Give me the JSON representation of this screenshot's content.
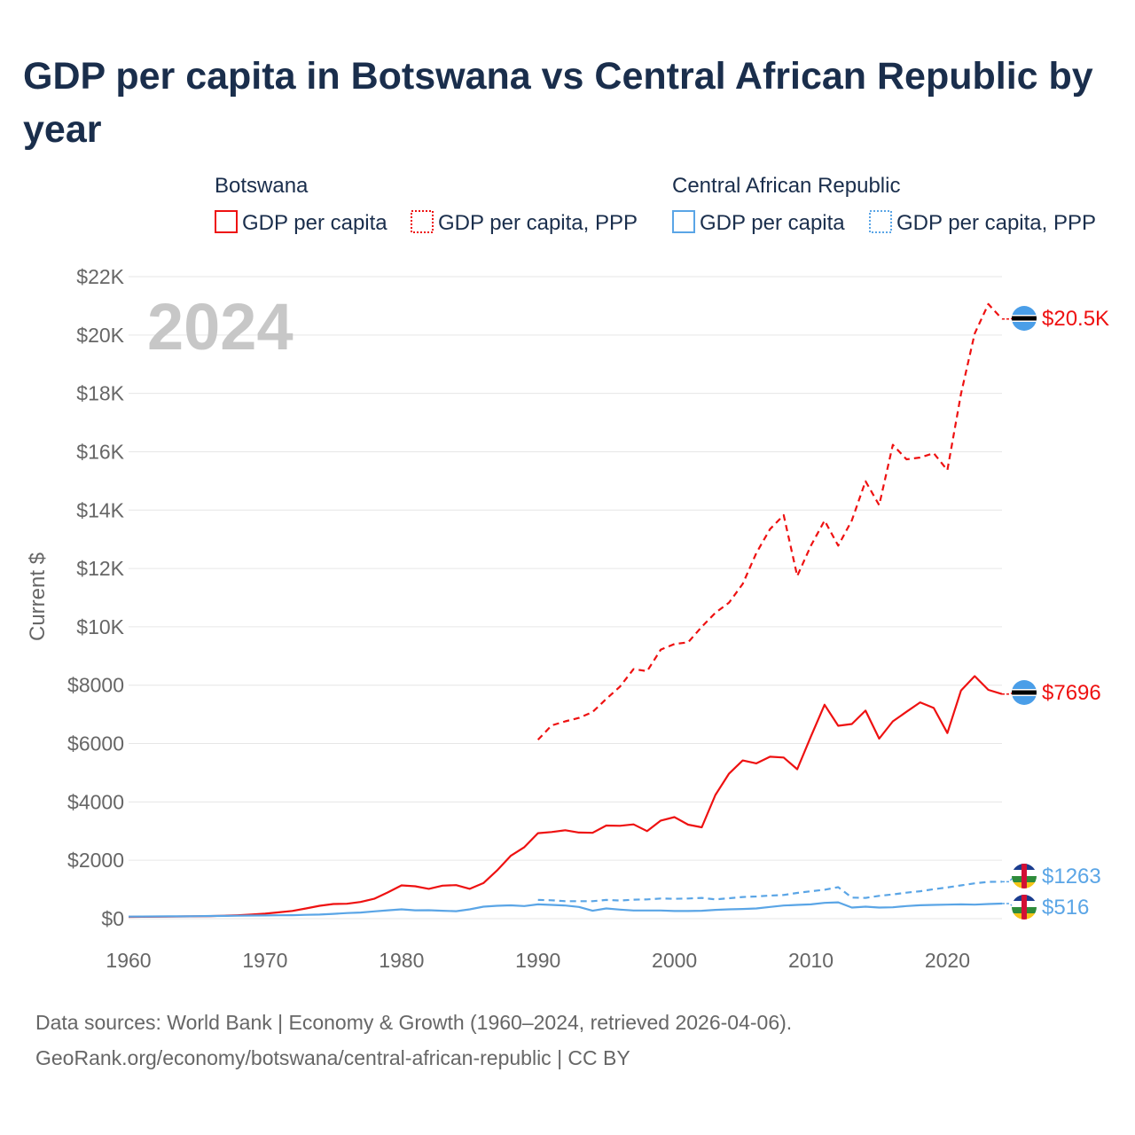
{
  "title": "GDP per capita in Botswana vs Central African Republic by year",
  "year_label": "2024",
  "legend": {
    "groups": [
      {
        "name": "Botswana",
        "items": [
          "GDP per capita",
          "GDP per capita, PPP"
        ]
      },
      {
        "name": "Central African Republic",
        "items": [
          "GDP per capita",
          "GDP per capita, PPP"
        ]
      }
    ]
  },
  "colors": {
    "botswana": "#ee1111",
    "car": "#5aa5e6",
    "grid": "#e6e6e6",
    "axis_text": "#666666"
  },
  "chart_data": {
    "type": "line",
    "title": "GDP per capita in Botswana vs Central African Republic by year",
    "xlabel": "",
    "ylabel": "Current $",
    "xlim": [
      1960,
      2024
    ],
    "ylim": [
      0,
      22000
    ],
    "x_ticks": [
      1960,
      1970,
      1980,
      1990,
      2000,
      2010,
      2020
    ],
    "x_tick_labels": [
      "1960",
      "1970",
      "1980",
      "1990",
      "2000",
      "2010",
      "2020"
    ],
    "y_ticks": [
      0,
      2000,
      4000,
      6000,
      8000,
      10000,
      12000,
      14000,
      16000,
      18000,
      20000,
      22000
    ],
    "y_tick_labels": [
      "$0",
      "$2000",
      "$4000",
      "$6000",
      "$8000",
      "$10K",
      "$12K",
      "$14K",
      "$16K",
      "$18K",
      "$20K",
      "$22K"
    ],
    "grid": true,
    "series": [
      {
        "name": "Botswana GDP per capita",
        "country": "Botswana",
        "style": "solid",
        "start_year": 1960,
        "end_label": "$7696",
        "values": [
          60,
          63,
          66,
          70,
          76,
          83,
          89,
          100,
          115,
          140,
          170,
          215,
          265,
          350,
          440,
          500,
          510,
          570,
          680,
          900,
          1140,
          1110,
          1020,
          1130,
          1150,
          1020,
          1220,
          1650,
          2150,
          2450,
          2930,
          2970,
          3030,
          2950,
          2940,
          3190,
          3180,
          3230,
          3000,
          3360,
          3480,
          3220,
          3130,
          4240,
          4970,
          5420,
          5320,
          5550,
          5520,
          5120,
          6240,
          7330,
          6610,
          6670,
          7130,
          6170,
          6760,
          7090,
          7410,
          7220,
          6360,
          7820,
          8310,
          7840,
          7696
        ]
      },
      {
        "name": "Botswana GDP per capita, PPP",
        "country": "Botswana",
        "style": "dashed",
        "start_year": 1990,
        "end_label": "$20.5K",
        "values": [
          6130,
          6620,
          6760,
          6880,
          7080,
          7530,
          7950,
          8550,
          8480,
          9220,
          9410,
          9470,
          10000,
          10480,
          10830,
          11470,
          12530,
          13350,
          13830,
          11740,
          12780,
          13640,
          12780,
          13650,
          14990,
          14170,
          16240,
          15740,
          15800,
          15950,
          15370,
          17990,
          20050,
          21060,
          20550
        ]
      },
      {
        "name": "Central African Republic GDP per capita",
        "country": "Central African Republic",
        "style": "solid",
        "start_year": 1960,
        "end_label": "$516",
        "values": [
          70,
          73,
          76,
          78,
          80,
          85,
          90,
          95,
          100,
          105,
          110,
          115,
          120,
          130,
          140,
          165,
          190,
          210,
          250,
          285,
          320,
          285,
          290,
          270,
          255,
          320,
          410,
          440,
          455,
          430,
          490,
          470,
          450,
          400,
          270,
          350,
          310,
          280,
          280,
          280,
          260,
          260,
          270,
          300,
          320,
          330,
          350,
          400,
          450,
          470,
          490,
          540,
          560,
          380,
          410,
          380,
          390,
          430,
          460,
          470,
          480,
          490,
          480,
          500,
          516
        ]
      },
      {
        "name": "Central African Republic GDP per capita, PPP",
        "country": "Central African Republic",
        "style": "dashed",
        "start_year": 1990,
        "end_label": "$1263",
        "values": [
          640,
          630,
          600,
          600,
          600,
          640,
          620,
          650,
          660,
          690,
          680,
          690,
          710,
          660,
          700,
          740,
          760,
          790,
          810,
          880,
          940,
          990,
          1080,
          720,
          710,
          780,
          830,
          890,
          940,
          1010,
          1070,
          1140,
          1210,
          1260,
          1263
        ]
      }
    ]
  },
  "footer": {
    "source": "Data sources: World Bank | Economy & Growth (1960–2024, retrieved 2026-04-06).",
    "credit": "GeoRank.org/economy/botswana/central-african-republic | CC BY"
  }
}
